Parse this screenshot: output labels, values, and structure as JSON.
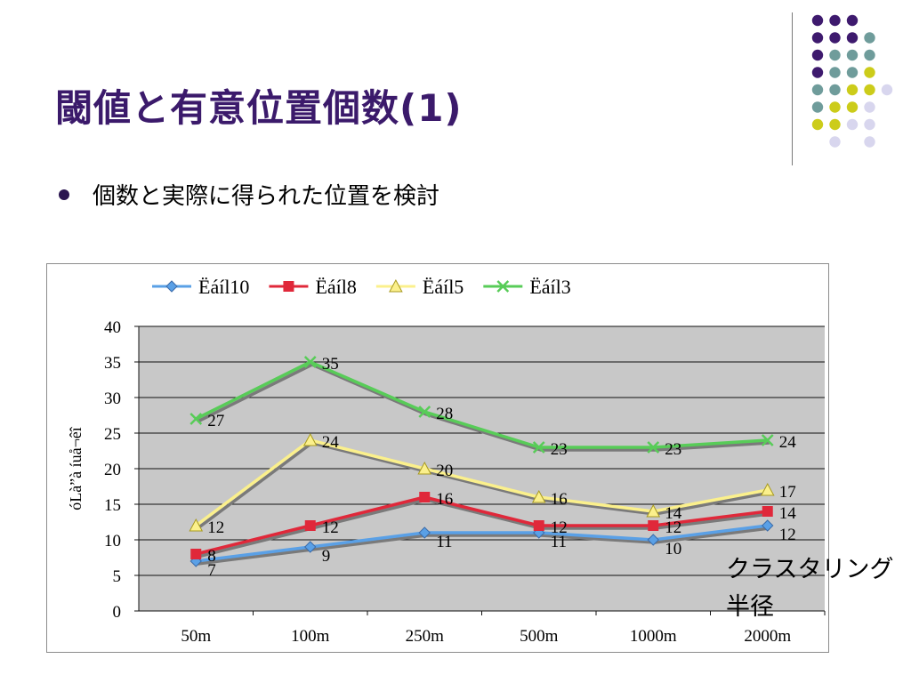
{
  "slide": {
    "title": "閾値と有意位置個数(1)",
    "bullet": "個数と実際に得られた位置を検討",
    "side_label_line1": "クラスタリング",
    "side_label_line2": "半径"
  },
  "decor_dots": [
    {
      "row": 0,
      "cells": [
        "purple",
        "purple",
        "purple",
        "none"
      ]
    },
    {
      "row": 1,
      "cells": [
        "purple",
        "purple",
        "purple",
        "teal"
      ]
    },
    {
      "row": 2,
      "cells": [
        "purple",
        "teal",
        "teal",
        "teal"
      ]
    },
    {
      "row": 3,
      "cells": [
        "purple",
        "teal",
        "teal",
        "yellow"
      ]
    },
    {
      "row": 4,
      "cells": [
        "teal",
        "teal",
        "yellow",
        "yellow",
        "lavender"
      ]
    },
    {
      "row": 5,
      "cells": [
        "teal",
        "yellow",
        "yellow",
        "lavender"
      ]
    },
    {
      "row": 6,
      "cells": [
        "yellow",
        "yellow",
        "lavender",
        "lavender"
      ]
    },
    {
      "row": 7,
      "cells": [
        "none",
        "lavender",
        "none",
        "lavender"
      ]
    }
  ],
  "colors": {
    "purple": "#3e1a6e",
    "teal": "#6f9c9b",
    "yellow": "#cccc1a",
    "lavender": "#d8d6ee",
    "title": "#3b1a6b",
    "plot_bg": "#c8c8c8"
  },
  "chart_data": {
    "type": "line",
    "categories": [
      "50m",
      "100m",
      "250m",
      "500m",
      "1000m",
      "2000m"
    ],
    "ylabel": "óLà”à íuå¬êî",
    "ylim": [
      0,
      40
    ],
    "yticks": [
      0,
      5,
      10,
      15,
      20,
      25,
      30,
      35,
      40
    ],
    "grid": true,
    "legend_position": "top",
    "series": [
      {
        "name": "Ëáíl10",
        "values": [
          7,
          9,
          11,
          11,
          10,
          12
        ],
        "color": "#5aa0e6",
        "marker": "diamond"
      },
      {
        "name": "Ëáíl8",
        "values": [
          8,
          12,
          16,
          12,
          12,
          14
        ],
        "color": "#e0283a",
        "marker": "square"
      },
      {
        "name": "Ëáíl5",
        "values": [
          12,
          24,
          20,
          16,
          14,
          17
        ],
        "color": "#fbf08c",
        "marker": "triangle"
      },
      {
        "name": "Ëáíl3",
        "values": [
          27,
          35,
          28,
          23,
          23,
          24
        ],
        "color": "#58cc58",
        "marker": "x"
      }
    ]
  }
}
